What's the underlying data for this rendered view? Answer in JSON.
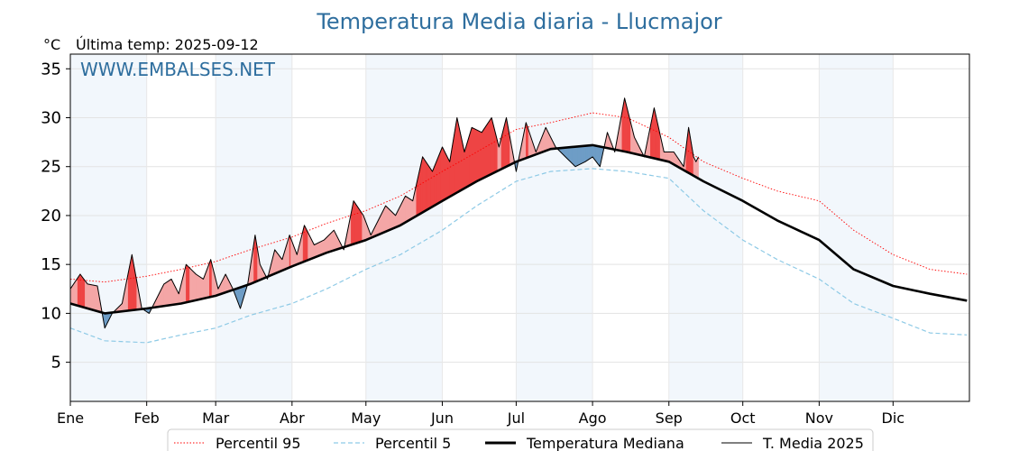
{
  "chart_data": {
    "type": "line",
    "title": "Temperatura Media diaria - Llucmajor",
    "unit": "°C",
    "subtitle": "Última temp: 2025-09-12",
    "watermark": "WWW.EMBALSES.NET",
    "ylim": [
      1,
      36.5
    ],
    "yticks": [
      5,
      10,
      15,
      20,
      25,
      30,
      35
    ],
    "xlabel": "",
    "ylabel": "",
    "x_months": [
      "Ene",
      "Feb",
      "Mar",
      "Abr",
      "May",
      "Jun",
      "Jul",
      "Ago",
      "Sep",
      "Oct",
      "Nov",
      "Dic"
    ],
    "grid": true,
    "legend_position": "bottom",
    "colors": {
      "p95": "#ff0000",
      "p5": "#8ecae6",
      "median": "#000000",
      "t2025": "#000000",
      "above_fill": "#f4a6a6",
      "above_strong": "#ee4444",
      "below_fill": "#6e9dc6",
      "below_strong": "#1f4e79",
      "title": "#2e6e9e",
      "month_band": "#f2f7fc"
    },
    "series": [
      {
        "name": "Percentil 95",
        "style": "dotted-red",
        "x": [
          1,
          15,
          32,
          46,
          60,
          74,
          91,
          105,
          121,
          135,
          152,
          166,
          182,
          196,
          213,
          227,
          244,
          258,
          274,
          288,
          305,
          319,
          335,
          350,
          365
        ],
        "values": [
          13.5,
          13.2,
          13.8,
          14.5,
          15.3,
          16.5,
          17.8,
          19.2,
          20.5,
          22.0,
          24.5,
          26.5,
          28.8,
          29.5,
          30.5,
          30.0,
          28.0,
          25.5,
          23.8,
          22.5,
          21.5,
          18.5,
          16.0,
          14.5,
          14.0
        ]
      },
      {
        "name": "Percentil 5",
        "style": "dashed-lightblue",
        "x": [
          1,
          15,
          32,
          46,
          60,
          74,
          91,
          105,
          121,
          135,
          152,
          166,
          182,
          196,
          213,
          227,
          244,
          258,
          274,
          288,
          305,
          319,
          335,
          350,
          365
        ],
        "values": [
          8.5,
          7.2,
          7.0,
          7.8,
          8.5,
          9.8,
          11.0,
          12.5,
          14.5,
          16.0,
          18.5,
          21.0,
          23.5,
          24.5,
          24.8,
          24.5,
          23.8,
          20.5,
          17.5,
          15.5,
          13.5,
          11.0,
          9.5,
          8.0,
          7.8
        ]
      },
      {
        "name": "Temperatura Mediana",
        "style": "thick-black",
        "x": [
          1,
          15,
          32,
          46,
          60,
          74,
          91,
          105,
          121,
          135,
          152,
          166,
          182,
          196,
          213,
          227,
          244,
          258,
          274,
          288,
          305,
          319,
          335,
          350,
          365
        ],
        "values": [
          11.0,
          10.0,
          10.5,
          11.0,
          11.8,
          13.0,
          14.8,
          16.2,
          17.5,
          19.0,
          21.5,
          23.5,
          25.5,
          26.8,
          27.2,
          26.5,
          25.5,
          23.5,
          21.5,
          19.5,
          17.5,
          14.5,
          12.8,
          12.0,
          11.3
        ]
      },
      {
        "name": "T. Media 2025",
        "style": "thin-black",
        "x": [
          1,
          5,
          8,
          12,
          15,
          18,
          22,
          26,
          30,
          33,
          36,
          39,
          42,
          45,
          48,
          52,
          55,
          58,
          61,
          64,
          67,
          70,
          73,
          76,
          78,
          81,
          84,
          87,
          90,
          93,
          96,
          100,
          104,
          108,
          112,
          116,
          120,
          123,
          126,
          129,
          133,
          137,
          140,
          144,
          148,
          152,
          155,
          158,
          161,
          164,
          168,
          172,
          175,
          178,
          182,
          186,
          190,
          194,
          198,
          202,
          206,
          210,
          213,
          216,
          219,
          222,
          226,
          230,
          234,
          238,
          242,
          246,
          250,
          252,
          254,
          255,
          256
        ],
        "values": [
          12.5,
          14.0,
          13.0,
          12.8,
          8.5,
          10.0,
          11.0,
          16.0,
          10.5,
          10.0,
          11.5,
          13.0,
          13.5,
          12.0,
          15.0,
          14.0,
          13.5,
          15.5,
          12.5,
          14.0,
          12.5,
          10.5,
          13.0,
          18.0,
          15.0,
          13.5,
          16.5,
          15.5,
          18.0,
          16.0,
          19.0,
          17.0,
          17.5,
          18.5,
          16.5,
          21.5,
          20.0,
          18.0,
          19.5,
          21.0,
          20.0,
          22.0,
          21.5,
          26.0,
          24.5,
          27.0,
          25.5,
          30.0,
          26.5,
          29.0,
          28.5,
          30.0,
          27.0,
          30.0,
          24.5,
          29.5,
          26.5,
          29.0,
          27.0,
          26.0,
          25.0,
          25.5,
          26.0,
          25.0,
          28.5,
          26.5,
          32.0,
          28.0,
          26.0,
          31.0,
          26.5,
          26.5,
          25.0,
          29.0,
          26.0,
          25.5,
          26.0
        ]
      }
    ]
  }
}
